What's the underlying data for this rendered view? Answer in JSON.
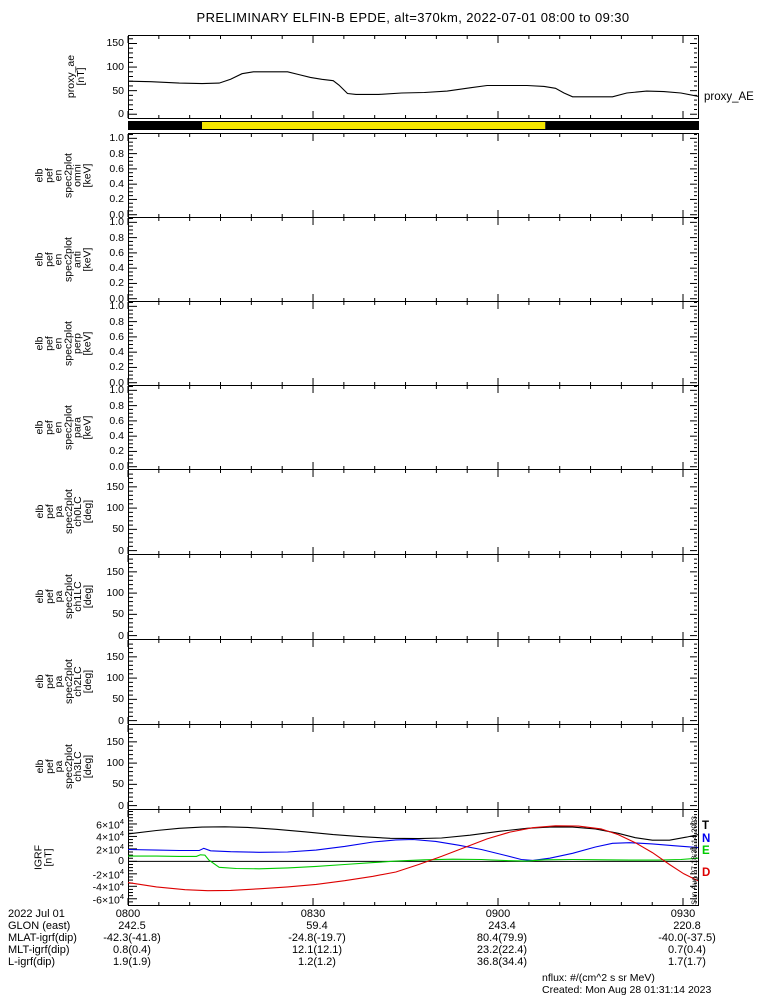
{
  "title": "PRELIMINARY ELFIN-B EPDE, alt=370km, 2022-07-01 08:00 to 09:30",
  "side": {
    "proxy_label": "proxy_AE",
    "timestamp": "Sun Aug 27 18:31:14 2023"
  },
  "footer": {
    "nflux": "nflux: #/(cm^2 s sr MeV)",
    "created": "Created: Mon Aug 28 01:31:14 2023"
  },
  "x_axis": {
    "labels": [
      "0800",
      "0830",
      "0900",
      "0930"
    ],
    "fractions": [
      0.0,
      0.3246,
      0.6491,
      0.9737
    ],
    "minor_step": 0.0541
  },
  "bottom_axis": {
    "date_label": "2022 Jul 01",
    "rows": [
      {
        "label": "GLON (east)",
        "values": [
          "242.5",
          "59.4",
          "243.4",
          "220.8"
        ]
      },
      {
        "label": "MLAT-igrf(dip)",
        "values": [
          "-42.3(-41.8)",
          "-24.8(-19.7)",
          "80.4(79.9)",
          "-40.0(-37.5)"
        ]
      },
      {
        "label": "MLT-igrf(dip)",
        "values": [
          "0.8(0.4)",
          "12.1(12.1)",
          "23.2(22.4)",
          "0.7(0.4)"
        ]
      },
      {
        "label": "L-igrf(dip)",
        "values": [
          "1.9(1.9)",
          "1.2(1.2)",
          "36.8(34.4)",
          "1.7(1.7)"
        ]
      }
    ]
  },
  "chart_data": [
    {
      "id": "proxy_ae",
      "type": "line",
      "ylabel_lines": [
        "proxy_ae",
        "[nT]"
      ],
      "ylim": [
        -8,
        168
      ],
      "yminor": 10,
      "yticks": [
        {
          "v": 0,
          "label": "0"
        },
        {
          "v": 50,
          "label": "50"
        },
        {
          "v": 100,
          "label": "100"
        },
        {
          "v": 150,
          "label": "150"
        }
      ],
      "series": [
        {
          "name": "proxy_AE",
          "color": "#000000",
          "x": [
            0,
            0.04,
            0.09,
            0.13,
            0.16,
            0.18,
            0.2,
            0.22,
            0.28,
            0.3,
            0.32,
            0.34,
            0.36,
            0.37,
            0.385,
            0.4,
            0.44,
            0.48,
            0.52,
            0.56,
            0.6,
            0.63,
            0.7,
            0.73,
            0.75,
            0.765,
            0.78,
            0.85,
            0.875,
            0.91,
            0.94,
            0.97,
            1.0
          ],
          "y": [
            70,
            69,
            66,
            65,
            66,
            74,
            86,
            90,
            90,
            84,
            78,
            74,
            71,
            62,
            44,
            42,
            42,
            45,
            46,
            49,
            56,
            61,
            61,
            59,
            55,
            45,
            37,
            37,
            45,
            49,
            48,
            45,
            38
          ]
        }
      ]
    },
    {
      "id": "bar",
      "type": "segments",
      "segments": [
        {
          "x0": 0.0,
          "x1": 0.13,
          "color": "#000000"
        },
        {
          "x0": 0.13,
          "x1": 0.732,
          "color": "#f5e600"
        },
        {
          "x0": 0.732,
          "x1": 1.0,
          "color": "#000000"
        }
      ]
    },
    {
      "id": "omni",
      "type": "line",
      "ylabel_lines": [
        "elb",
        "pef",
        "en",
        "spec2plot",
        "omni",
        "[keV]"
      ],
      "ylim": [
        -0.03,
        1.07
      ],
      "yminor": 0.05,
      "yticks": [
        {
          "v": 0.0,
          "label": "0.0"
        },
        {
          "v": 0.2,
          "label": "0.2"
        },
        {
          "v": 0.4,
          "label": "0.4"
        },
        {
          "v": 0.6,
          "label": "0.6"
        },
        {
          "v": 0.8,
          "label": "0.8"
        },
        {
          "v": 1.0,
          "label": "1.0"
        }
      ],
      "series": []
    },
    {
      "id": "anti",
      "type": "line",
      "ylabel_lines": [
        "elb",
        "pef",
        "en",
        "spec2plot",
        "anti",
        "[keV]"
      ],
      "ylim": [
        -0.03,
        1.07
      ],
      "yminor": 0.05,
      "yticks": [
        {
          "v": 0.0,
          "label": "0.0"
        },
        {
          "v": 0.2,
          "label": "0.2"
        },
        {
          "v": 0.4,
          "label": "0.4"
        },
        {
          "v": 0.6,
          "label": "0.6"
        },
        {
          "v": 0.8,
          "label": "0.8"
        },
        {
          "v": 1.0,
          "label": "1.0"
        }
      ],
      "series": []
    },
    {
      "id": "perp",
      "type": "line",
      "ylabel_lines": [
        "elb",
        "pef",
        "en",
        "spec2plot",
        "perp",
        "[keV]"
      ],
      "ylim": [
        -0.03,
        1.07
      ],
      "yminor": 0.05,
      "yticks": [
        {
          "v": 0.0,
          "label": "0.0"
        },
        {
          "v": 0.2,
          "label": "0.2"
        },
        {
          "v": 0.4,
          "label": "0.4"
        },
        {
          "v": 0.6,
          "label": "0.6"
        },
        {
          "v": 0.8,
          "label": "0.8"
        },
        {
          "v": 1.0,
          "label": "1.0"
        }
      ],
      "series": []
    },
    {
      "id": "para",
      "type": "line",
      "ylabel_lines": [
        "elb",
        "pef",
        "en",
        "spec2plot",
        "para",
        "[keV]"
      ],
      "ylim": [
        -0.03,
        1.07
      ],
      "yminor": 0.05,
      "yticks": [
        {
          "v": 0.0,
          "label": "0.0"
        },
        {
          "v": 0.2,
          "label": "0.2"
        },
        {
          "v": 0.4,
          "label": "0.4"
        },
        {
          "v": 0.6,
          "label": "0.6"
        },
        {
          "v": 0.8,
          "label": "0.8"
        },
        {
          "v": 1.0,
          "label": "1.0"
        }
      ],
      "series": []
    },
    {
      "id": "ch0LC",
      "type": "line",
      "ylabel_lines": [
        "elb",
        "pef",
        "pa",
        "spec2plot",
        "ch0LC",
        "[deg]"
      ],
      "ylim": [
        -8,
        192
      ],
      "yminor": 10,
      "yticks": [
        {
          "v": 0,
          "label": "0"
        },
        {
          "v": 50,
          "label": "50"
        },
        {
          "v": 100,
          "label": "100"
        },
        {
          "v": 150,
          "label": "150"
        }
      ],
      "series": []
    },
    {
      "id": "ch1LC",
      "type": "line",
      "ylabel_lines": [
        "elb",
        "pef",
        "pa",
        "spec2plot",
        "ch1LC",
        "[deg]"
      ],
      "ylim": [
        -8,
        192
      ],
      "yminor": 10,
      "yticks": [
        {
          "v": 0,
          "label": "0"
        },
        {
          "v": 50,
          "label": "50"
        },
        {
          "v": 100,
          "label": "100"
        },
        {
          "v": 150,
          "label": "150"
        }
      ],
      "series": []
    },
    {
      "id": "ch2LC",
      "type": "line",
      "ylabel_lines": [
        "elb",
        "pef",
        "pa",
        "spec2plot",
        "ch2LC",
        "[deg]"
      ],
      "ylim": [
        -8,
        192
      ],
      "yminor": 10,
      "yticks": [
        {
          "v": 0,
          "label": "0"
        },
        {
          "v": 50,
          "label": "50"
        },
        {
          "v": 100,
          "label": "100"
        },
        {
          "v": 150,
          "label": "150"
        }
      ],
      "series": []
    },
    {
      "id": "ch3LC",
      "type": "line",
      "ylabel_lines": [
        "elb",
        "pef",
        "pa",
        "spec2plot",
        "ch3LC",
        "[deg]"
      ],
      "ylim": [
        -8,
        192
      ],
      "yminor": 10,
      "yticks": [
        {
          "v": 0,
          "label": "0"
        },
        {
          "v": 50,
          "label": "50"
        },
        {
          "v": 100,
          "label": "100"
        },
        {
          "v": 150,
          "label": "150"
        }
      ],
      "series": []
    },
    {
      "id": "igrf",
      "type": "line",
      "ylabel_lines": [
        "IGRF",
        "[nT]"
      ],
      "ylim": [
        -70000,
        84000
      ],
      "yminor": 5000,
      "zero_line": true,
      "yticks": [
        {
          "v": 60000,
          "label": "6×10^4"
        },
        {
          "v": 40000,
          "label": "4×10^4"
        },
        {
          "v": 20000,
          "label": "2×10^4"
        },
        {
          "v": 0,
          "label": "0"
        },
        {
          "v": -20000,
          "label": "-2×10^4"
        },
        {
          "v": -40000,
          "label": "-4×10^4"
        },
        {
          "v": -60000,
          "label": "-6×10^4"
        }
      ],
      "legend": [
        {
          "label": "T",
          "color": "#000000"
        },
        {
          "label": "N",
          "color": "#0000ee"
        },
        {
          "label": "E",
          "color": "#00cc00"
        },
        {
          "label": "D",
          "color": "#dd0000"
        }
      ],
      "series": [
        {
          "name": "T",
          "color": "#000000",
          "x": [
            0,
            0.05,
            0.09,
            0.13,
            0.17,
            0.21,
            0.26,
            0.31,
            0.36,
            0.41,
            0.46,
            0.51,
            0.55,
            0.6,
            0.65,
            0.7,
            0.74,
            0.78,
            0.82,
            0.86,
            0.89,
            0.92,
            0.95,
            0.98,
            1.0
          ],
          "y": [
            44000,
            49500,
            53000,
            55000,
            55500,
            54500,
            51500,
            47500,
            43000,
            39500,
            37000,
            36500,
            37500,
            42000,
            48000,
            53000,
            55000,
            55000,
            52000,
            45000,
            38000,
            34000,
            34000,
            39000,
            43000
          ]
        },
        {
          "name": "N",
          "color": "#0000ee",
          "x": [
            0,
            0.05,
            0.09,
            0.125,
            0.133,
            0.145,
            0.18,
            0.23,
            0.28,
            0.33,
            0.38,
            0.43,
            0.47,
            0.5,
            0.54,
            0.58,
            0.62,
            0.66,
            0.69,
            0.71,
            0.74,
            0.78,
            0.82,
            0.85,
            0.88,
            0.92,
            0.96,
            1.0
          ],
          "y": [
            19000,
            18000,
            17500,
            17500,
            21000,
            17000,
            15500,
            14500,
            15000,
            18000,
            24000,
            31000,
            34500,
            35000,
            32000,
            26000,
            19000,
            10000,
            3000,
            1500,
            5000,
            13000,
            23000,
            29000,
            30000,
            28000,
            25000,
            22000
          ]
        },
        {
          "name": "E",
          "color": "#00cc00",
          "x": [
            0,
            0.05,
            0.09,
            0.12,
            0.127,
            0.135,
            0.142,
            0.16,
            0.19,
            0.23,
            0.28,
            0.33,
            0.38,
            0.43,
            0.47,
            0.52,
            0.57,
            0.62,
            0.67,
            0.7,
            0.73,
            0.78,
            0.83,
            0.88,
            0.93,
            0.97,
            1.0
          ],
          "y": [
            8500,
            8500,
            8000,
            8000,
            10500,
            10000,
            2000,
            -9500,
            -11500,
            -12000,
            -10500,
            -8000,
            -5000,
            -2000,
            500,
            2500,
            3500,
            3000,
            1000,
            500,
            2500,
            3000,
            2500,
            2000,
            2000,
            3000,
            5000
          ]
        },
        {
          "name": "D",
          "color": "#dd0000",
          "x": [
            0,
            0.05,
            0.1,
            0.14,
            0.18,
            0.23,
            0.28,
            0.33,
            0.38,
            0.43,
            0.47,
            0.51,
            0.55,
            0.59,
            0.63,
            0.67,
            0.71,
            0.75,
            0.79,
            0.83,
            0.86,
            0.89,
            0.92,
            0.95,
            0.975,
            1.0
          ],
          "y": [
            -34000,
            -41000,
            -45500,
            -47000,
            -46500,
            -44000,
            -41000,
            -37000,
            -31000,
            -24000,
            -17000,
            -5000,
            8000,
            22000,
            36000,
            47000,
            54000,
            57000,
            56500,
            52000,
            43000,
            30000,
            14000,
            -5000,
            -20000,
            -31000
          ]
        }
      ]
    }
  ]
}
